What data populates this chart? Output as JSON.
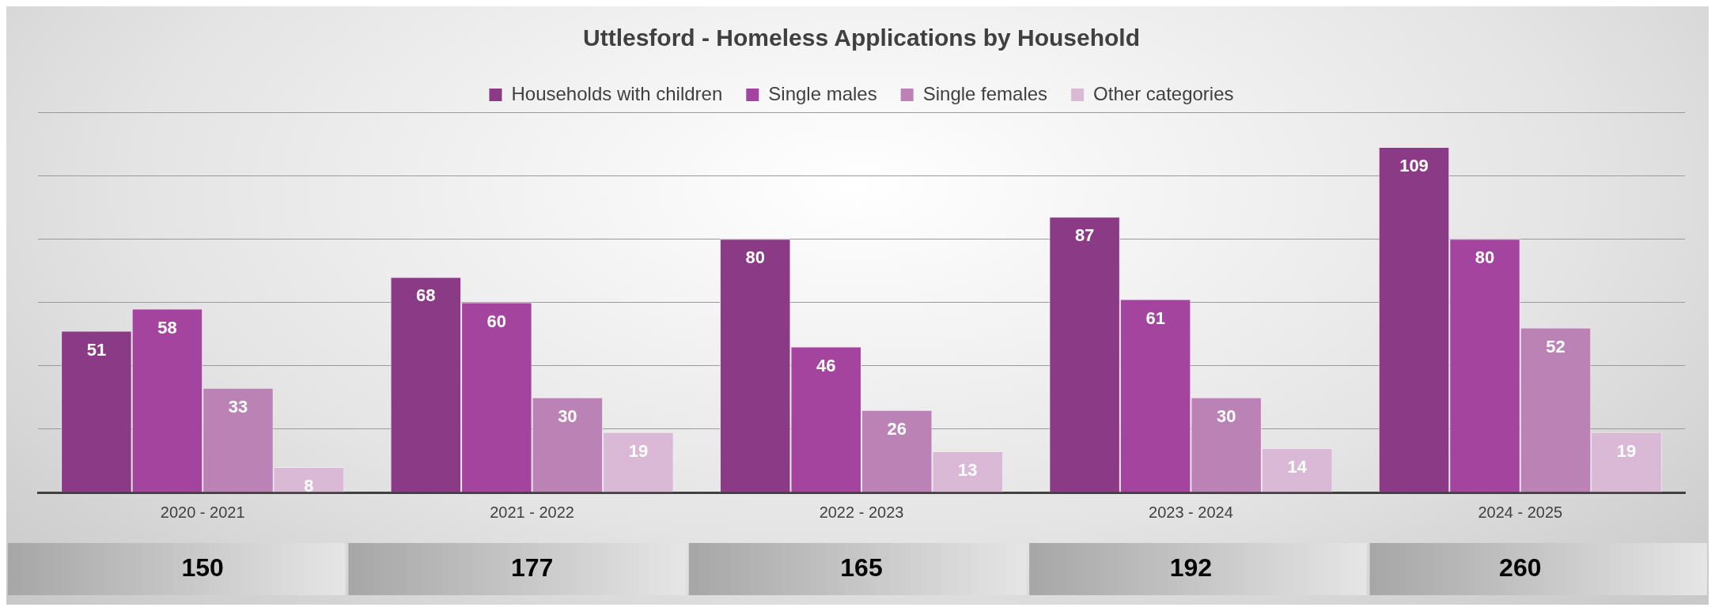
{
  "chart_data": {
    "type": "bar",
    "title": "Uttlesford - Homeless Applications by Household",
    "categories": [
      "2020 - 2021",
      "2021 - 2022",
      "2022 - 2023",
      "2023 - 2024",
      "2024 - 2025"
    ],
    "series": [
      {
        "name": "Households with children",
        "color": "#8b3a85",
        "values": [
          51,
          68,
          80,
          87,
          109
        ]
      },
      {
        "name": "Single males",
        "color": "#a3449e",
        "values": [
          58,
          60,
          46,
          61,
          80
        ]
      },
      {
        "name": "Single females",
        "color": "#bb82b6",
        "values": [
          33,
          30,
          26,
          30,
          52
        ]
      },
      {
        "name": "Other categories",
        "color": "#d9b9d6",
        "values": [
          8,
          19,
          13,
          14,
          19
        ]
      }
    ],
    "ylim": [
      0,
      120
    ],
    "yticks": [
      0,
      20,
      40,
      60,
      80,
      100,
      120
    ],
    "grid": "y",
    "legend": "top",
    "tick_labels": "x",
    "data_labels": true,
    "totals": [
      "150",
      "177",
      "165",
      "192",
      "260"
    ]
  }
}
